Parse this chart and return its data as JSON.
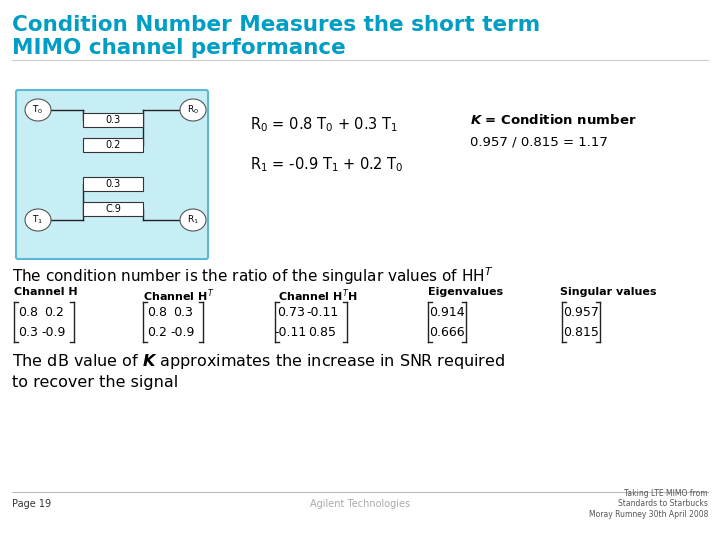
{
  "title_line1": "Condition Number Measures the short term",
  "title_line2": "MIMO channel performance",
  "title_color": "#009DC4",
  "bg_color": "#FFFFFF",
  "diagram_bg": "#C8EEF5",
  "diagram_border": "#5BB8D4",
  "col_headers": [
    "Channel H",
    "Channel H$^T$",
    "Channel H$^T$H",
    "Eigenvalues",
    "Singular values"
  ],
  "matrix_H": [
    [
      "0.8",
      "0.2"
    ],
    [
      "0.3",
      "-0.9"
    ]
  ],
  "matrix_HT": [
    [
      "0.8",
      "0.3"
    ],
    [
      "0.2",
      "-0.9"
    ]
  ],
  "matrix_HTH": [
    [
      "0.73",
      "-0.11"
    ],
    [
      "-0.11",
      "0.85"
    ]
  ],
  "vector_eig": [
    "0.914",
    "0.666"
  ],
  "vector_sv": [
    "0.957",
    "0.815"
  ],
  "footer_left": "Page 19",
  "footer_center": "Agilent Technologies",
  "footer_right": "Taking LTE MIMO from\nStandards to Starbucks\nMoray Rumney 30th April 2008"
}
